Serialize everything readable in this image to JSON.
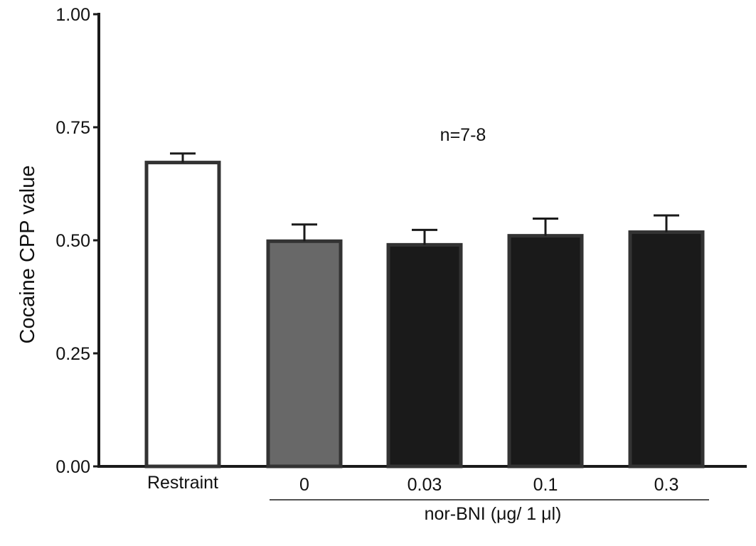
{
  "chart_data": {
    "type": "bar",
    "title": "",
    "ylabel": "Cocaine CPP value",
    "xlabel": "",
    "ylim": [
      0,
      1.0
    ],
    "yticks": [
      {
        "value": 0.0,
        "label": "0.00"
      },
      {
        "value": 0.25,
        "label": "0.25"
      },
      {
        "value": 0.5,
        "label": "0.50"
      },
      {
        "value": 0.75,
        "label": "0.75"
      },
      {
        "value": 1.0,
        "label": "1.00"
      }
    ],
    "categories": [
      "Restraint",
      "0",
      "0.03",
      "0.1",
      "0.3"
    ],
    "values": [
      0.672,
      0.498,
      0.49,
      0.51,
      0.518
    ],
    "errors": [
      0.02,
      0.037,
      0.033,
      0.038,
      0.037
    ],
    "bar_colors": [
      "#ffffff",
      "#686868",
      "#1a1a1a",
      "#1a1a1a",
      "#1a1a1a"
    ],
    "edge_color": "#333333",
    "annotation": "n=7-8",
    "group_label": "nor-BNI (μg/ 1 μl)",
    "group_categories": [
      "0",
      "0.03",
      "0.1",
      "0.3"
    ],
    "grid": false,
    "legend": "none"
  }
}
